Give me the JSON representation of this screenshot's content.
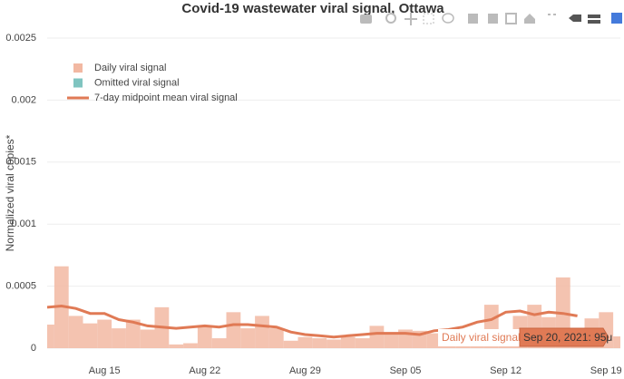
{
  "chart_data": {
    "type": "bar",
    "title": "Covid-19 wastewater viral signal, Ottawa",
    "y_label": "Normalized viral copies*",
    "x": [
      "2021-08-11",
      "2021-08-12",
      "2021-08-13",
      "2021-08-14",
      "2021-08-15",
      "2021-08-16",
      "2021-08-17",
      "2021-08-18",
      "2021-08-19",
      "2021-08-20",
      "2021-08-21",
      "2021-08-22",
      "2021-08-23",
      "2021-08-24",
      "2021-08-25",
      "2021-08-26",
      "2021-08-27",
      "2021-08-28",
      "2021-08-29",
      "2021-08-30",
      "2021-08-31",
      "2021-09-01",
      "2021-09-02",
      "2021-09-03",
      "2021-09-04",
      "2021-09-05",
      "2021-09-06",
      "2021-09-07",
      "2021-09-08",
      "2021-09-09",
      "2021-09-10",
      "2021-09-11",
      "2021-09-12",
      "2021-09-13",
      "2021-09-14",
      "2021-09-15",
      "2021-09-16",
      "2021-09-17",
      "2021-09-18",
      "2021-09-19",
      "2021-09-20"
    ],
    "series": [
      {
        "name": "Daily viral signal",
        "type": "bar",
        "color": "#f2b8a2",
        "values": [
          0.00019,
          0.00066,
          0.00026,
          0.0002,
          0.00023,
          0.00016,
          0.00023,
          0.00015,
          0.00033,
          3e-05,
          4e-05,
          0.00018,
          8e-05,
          0.00029,
          0.00016,
          0.00026,
          0.00016,
          6e-05,
          9e-05,
          8e-05,
          7e-05,
          9e-05,
          8e-05,
          0.00018,
          0.00012,
          0.00015,
          0.00014,
          0.00012,
          9e-05,
          5e-05,
          0.00012,
          0.00035,
          0.00012,
          0.00026,
          0.00035,
          0.00025,
          0.00057,
          0.00016,
          0.00024,
          0.00029,
          9.5e-05
        ]
      },
      {
        "name": "Omitted viral signal",
        "type": "bar",
        "color": "#7fc4c0",
        "values": [
          null,
          null,
          null,
          null,
          null,
          null,
          null,
          null,
          null,
          null,
          null,
          null,
          null,
          null,
          null,
          null,
          null,
          null,
          null,
          null,
          null,
          null,
          null,
          null,
          null,
          null,
          null,
          null,
          null,
          null,
          null,
          null,
          null,
          null,
          null,
          null,
          null,
          null,
          null,
          null,
          null
        ]
      },
      {
        "name": "7-day midpoint mean viral signal",
        "type": "line",
        "color": "#e07a55",
        "values": [
          0.00033,
          0.00034,
          0.00032,
          0.00028,
          0.00028,
          0.00023,
          0.00021,
          0.00018,
          0.00017,
          0.00016,
          0.00017,
          0.00018,
          0.00017,
          0.00019,
          0.00019,
          0.00018,
          0.00017,
          0.00013,
          0.00011,
          0.0001,
          9e-05,
          0.0001,
          0.00011,
          0.00012,
          0.00012,
          0.00012,
          0.00011,
          0.00014,
          0.00015,
          0.00017,
          0.00021,
          0.00023,
          0.00029,
          0.0003,
          0.00027,
          0.00029,
          0.00028,
          0.00026,
          null,
          null,
          null
        ]
      }
    ],
    "xlim": [
      "2021-08-11",
      "2021-09-20"
    ],
    "xticks": [
      {
        "value": "2021-08-15",
        "label": "Aug 15"
      },
      {
        "value": "2021-08-22",
        "label": "Aug 22"
      },
      {
        "value": "2021-08-29",
        "label": "Aug 29"
      },
      {
        "value": "2021-09-05",
        "label": "Sep 05"
      },
      {
        "value": "2021-09-12",
        "label": "Sep 12"
      },
      {
        "value": "2021-09-19",
        "label": "Sep 19"
      }
    ],
    "ylim": [
      0,
      0.0025
    ],
    "yticks": [
      0,
      0.0005,
      0.001,
      0.0015,
      0.002,
      0.0025
    ],
    "grid": true,
    "legend": "top-left",
    "hover": {
      "series": "Daily viral signal",
      "text": "Sep 20, 2021: 95μ"
    }
  }
}
